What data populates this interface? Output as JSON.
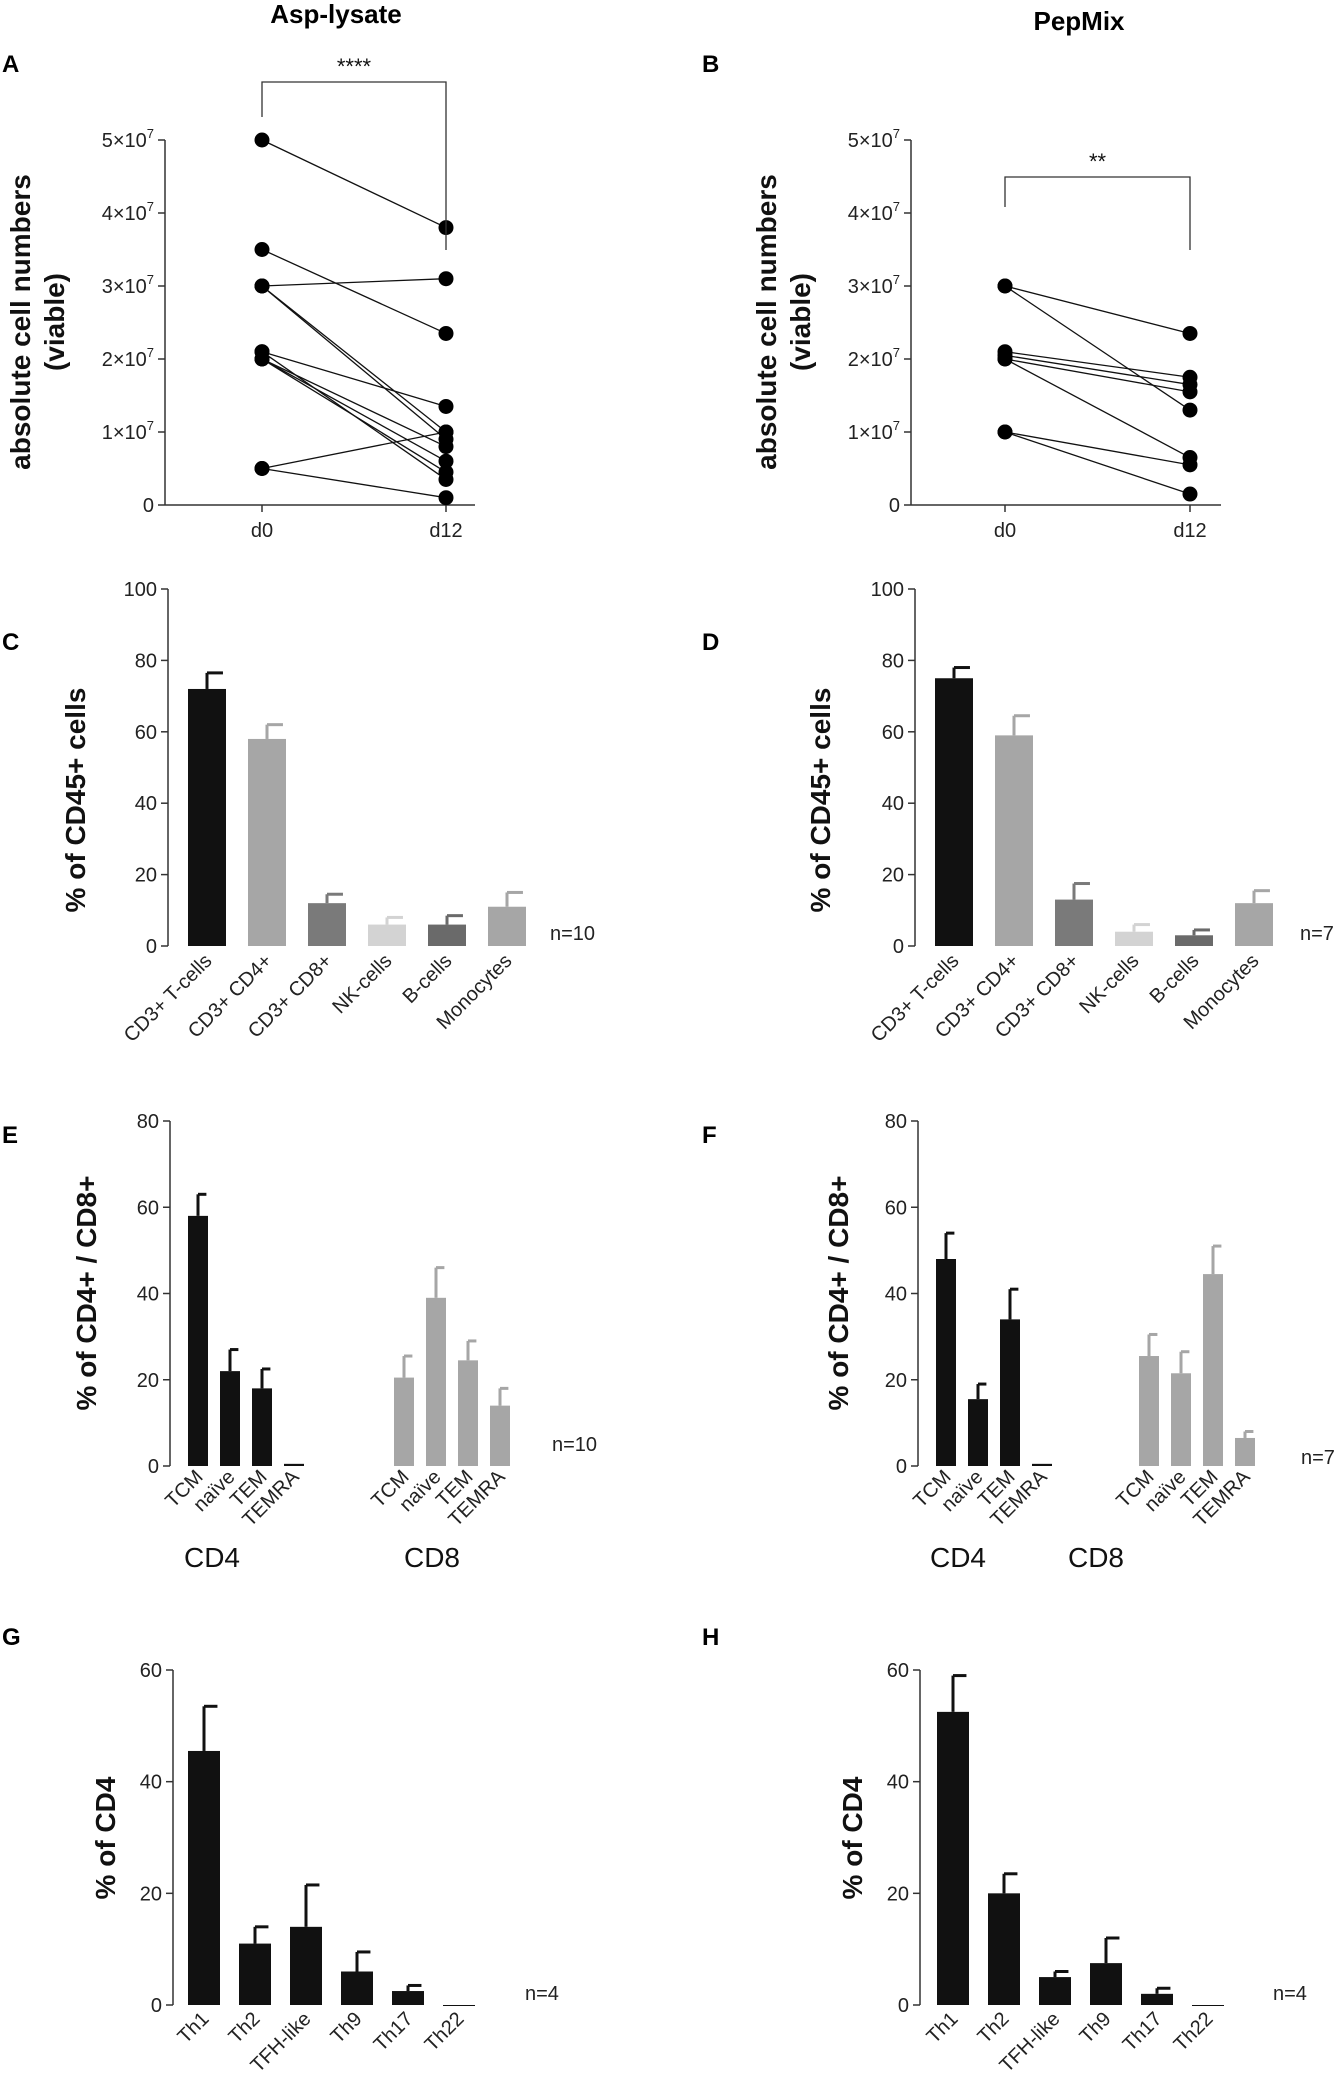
{
  "column_titles": [
    "Asp-lysate",
    "PepMix"
  ],
  "chart_data": [
    {
      "id": "A",
      "type": "line",
      "title": "Asp-lysate",
      "ylabel": "absolute cell numbers (viable)",
      "categories": [
        "d0",
        "d12"
      ],
      "ylim": [
        0,
        50000000
      ],
      "yticks": [
        "0",
        "1×10^7",
        "2×10^7",
        "3×10^7",
        "4×10^7",
        "5×10^7"
      ],
      "significance": "****",
      "pairs": [
        [
          50000000,
          38000000
        ],
        [
          35000000,
          23500000
        ],
        [
          30000000,
          31000000
        ],
        [
          30000000,
          10000000
        ],
        [
          30000000,
          9000000
        ],
        [
          21000000,
          13500000
        ],
        [
          21000000,
          3500000
        ],
        [
          20000000,
          8000000
        ],
        [
          20000000,
          6000000
        ],
        [
          20000000,
          4500000
        ],
        [
          5000000,
          10000000
        ],
        [
          5000000,
          1000000
        ]
      ]
    },
    {
      "id": "B",
      "type": "line",
      "title": "PepMix",
      "ylabel": "absolute cell numbers (viable)",
      "categories": [
        "d0",
        "d12"
      ],
      "ylim": [
        0,
        50000000
      ],
      "yticks": [
        "0",
        "1×10^7",
        "2×10^7",
        "3×10^7",
        "4×10^7",
        "5×10^7"
      ],
      "significance": "**",
      "pairs": [
        [
          30000000,
          23500000
        ],
        [
          30000000,
          13000000
        ],
        [
          21000000,
          17500000
        ],
        [
          20500000,
          16500000
        ],
        [
          20000000,
          15500000
        ],
        [
          20000000,
          6500000
        ],
        [
          10000000,
          5500000
        ],
        [
          10000000,
          1500000
        ]
      ]
    },
    {
      "id": "C",
      "type": "bar",
      "ylabel": "% of CD45+ cells",
      "ylim": [
        0,
        100
      ],
      "yticks": [
        "0",
        "20",
        "40",
        "60",
        "80",
        "100"
      ],
      "n": "n=10",
      "categories": [
        "CD3+ T-cells",
        "CD3+ CD4+",
        "CD3+ CD8+",
        "NK-cells",
        "B-cells",
        "Monocytes"
      ],
      "values": [
        72,
        58,
        12,
        6,
        6,
        11
      ],
      "errors": [
        4.5,
        4,
        2.5,
        2,
        2.5,
        4
      ],
      "colors": [
        "#111111",
        "#a6a6a6",
        "#7a7a7a",
        "#d3d3d3",
        "#6a6a6a",
        "#a6a6a6"
      ]
    },
    {
      "id": "D",
      "type": "bar",
      "ylabel": "% of CD45+ cells",
      "ylim": [
        0,
        100
      ],
      "yticks": [
        "0",
        "20",
        "40",
        "60",
        "80",
        "100"
      ],
      "n": "n=7",
      "categories": [
        "CD3+ T-cells",
        "CD3+ CD4+",
        "CD3+ CD8+",
        "NK-cells",
        "B-cells",
        "Monocytes"
      ],
      "values": [
        75,
        59,
        13,
        4,
        3,
        12
      ],
      "errors": [
        3,
        5.5,
        4.5,
        2,
        1.5,
        3.5
      ],
      "colors": [
        "#111111",
        "#a6a6a6",
        "#7a7a7a",
        "#d3d3d3",
        "#6a6a6a",
        "#a6a6a6"
      ]
    },
    {
      "id": "E",
      "type": "bar",
      "ylabel": "% of CD4+ / CD8+",
      "ylim": [
        0,
        80
      ],
      "yticks": [
        "0",
        "20",
        "40",
        "60",
        "80"
      ],
      "n": "n=10",
      "categories": [
        "TCM",
        "naïve",
        "TEM",
        "TEMRA",
        "TCM",
        "naïve",
        "TEM",
        "TEMRA"
      ],
      "groups": [
        "CD4",
        "CD8"
      ],
      "values": [
        58,
        22,
        18,
        0.5,
        20.5,
        39,
        24.5,
        14
      ],
      "errors": [
        5,
        5,
        4.5,
        0,
        5,
        7,
        4.5,
        4
      ],
      "colors": [
        "#111111",
        "#111111",
        "#111111",
        "#111111",
        "#a6a6a6",
        "#a6a6a6",
        "#a6a6a6",
        "#a6a6a6"
      ]
    },
    {
      "id": "F",
      "type": "bar",
      "ylabel": "% of CD4+ / CD8+",
      "ylim": [
        0,
        80
      ],
      "yticks": [
        "0",
        "20",
        "40",
        "60",
        "80"
      ],
      "n": "n=7",
      "categories": [
        "TCM",
        "naïve",
        "TEM",
        "TEMRA",
        "TCM",
        "naïve",
        "TEM",
        "TEMRA"
      ],
      "groups": [
        "CD4",
        "CD8"
      ],
      "values": [
        48,
        15.5,
        34,
        0.5,
        25.5,
        21.5,
        44.5,
        6.5
      ],
      "errors": [
        6,
        3.5,
        7,
        0,
        5,
        5,
        6.5,
        1.5
      ],
      "colors": [
        "#111111",
        "#111111",
        "#111111",
        "#111111",
        "#a6a6a6",
        "#a6a6a6",
        "#a6a6a6",
        "#a6a6a6"
      ]
    },
    {
      "id": "G",
      "type": "bar",
      "ylabel": "% of CD4",
      "ylim": [
        0,
        60
      ],
      "yticks": [
        "0",
        "20",
        "40",
        "60"
      ],
      "n": "n=4",
      "categories": [
        "Th1",
        "Th2",
        "TFH-like",
        "Th9",
        "Th17",
        "Th22"
      ],
      "values": [
        45.5,
        11,
        14,
        6,
        2.5,
        0
      ],
      "errors": [
        8,
        3,
        7.5,
        3.5,
        1,
        0
      ],
      "colors": [
        "#111111",
        "#111111",
        "#111111",
        "#111111",
        "#111111",
        "#111111"
      ]
    },
    {
      "id": "H",
      "type": "bar",
      "ylabel": "% of CD4",
      "ylim": [
        0,
        60
      ],
      "yticks": [
        "0",
        "20",
        "40",
        "60"
      ],
      "n": "n=4",
      "categories": [
        "Th1",
        "Th2",
        "TFH-like",
        "Th9",
        "Th17",
        "Th22"
      ],
      "values": [
        52.5,
        20,
        5,
        7.5,
        2,
        0
      ],
      "errors": [
        6.5,
        3.5,
        1,
        4.5,
        1,
        0
      ],
      "colors": [
        "#111111",
        "#111111",
        "#111111",
        "#111111",
        "#111111",
        "#111111"
      ]
    }
  ]
}
